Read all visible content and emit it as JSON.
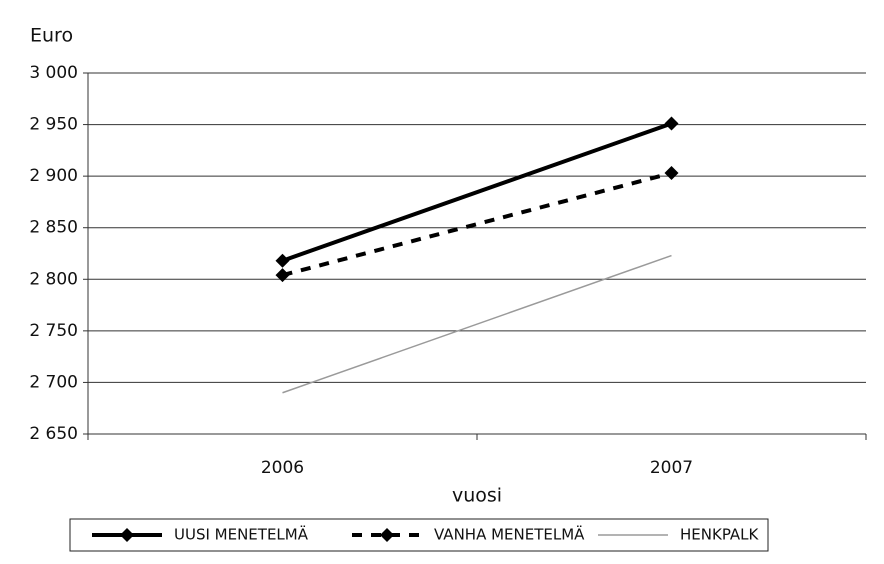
{
  "chart_data": {
    "type": "line",
    "y_label": "Euro",
    "x_label": "vuosi",
    "categories": [
      "2006",
      "2007"
    ],
    "series": [
      {
        "name": "UUSI MENETELMÄ",
        "color": "#000000",
        "line_style": "solid",
        "marker": "diamond",
        "values": [
          2818,
          2951
        ]
      },
      {
        "name": "VANHA MENETELMÄ",
        "color": "#000000",
        "line_style": "dashed",
        "marker": "diamond",
        "values": [
          2804,
          2903
        ]
      },
      {
        "name": "HENKPALK",
        "color": "#9a9a9a",
        "line_style": "thin",
        "marker": "none",
        "values": [
          2690,
          2823
        ]
      }
    ],
    "ylim": [
      2650,
      3000
    ],
    "yticks": [
      {
        "value": 2650,
        "label": "2 650"
      },
      {
        "value": 2700,
        "label": "2 700"
      },
      {
        "value": 2750,
        "label": "2 750"
      },
      {
        "value": 2800,
        "label": "2 800"
      },
      {
        "value": 2850,
        "label": "2 850"
      },
      {
        "value": 2900,
        "label": "2 900"
      },
      {
        "value": 2950,
        "label": "2 950"
      },
      {
        "value": 3000,
        "label": "3 000"
      }
    ],
    "grid": true,
    "legend": "bottom"
  }
}
